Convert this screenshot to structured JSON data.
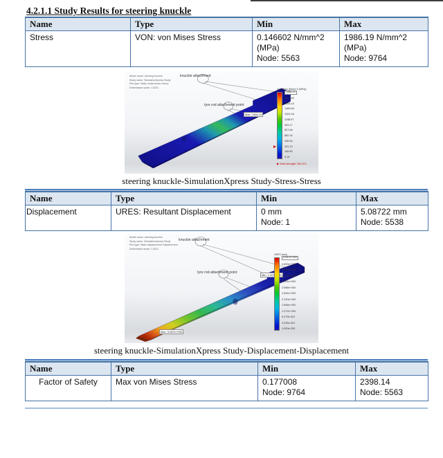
{
  "heading": "4.2.1.1 Study Results for steering knuckle",
  "colors": {
    "table_border_blue": "#4472a4",
    "table_header_fill": "#dce6f1",
    "divider_blue": "#4a7ebb",
    "yield_note_red": "#c40000"
  },
  "sections": [
    {
      "table": {
        "headers": [
          "Name",
          "Type",
          "Min",
          "Max"
        ],
        "row": [
          "Stress",
          "VON: von Mises Stress",
          "0.146602 N/mm^2 (MPa)\nNode: 5563",
          "1986.19 N/mm^2 (MPa)\nNode: 9764"
        ]
      },
      "figure": {
        "info_lines": [
          "Model name: steering knuckle",
          "Study name: SimulationXpress Study",
          "Plot type: Static nodal stress Stress",
          "Deformation scale: 1.5231"
        ],
        "annotation_knuckle": "knuckle attachment",
        "annotation_tyre_rod": "tyre rod attachment point",
        "max_label": "Max: 1986.19",
        "legend": {
          "title": "von Mises (N/mm^2 (MPa))",
          "labels": [
            "1986.19",
            "1820.69",
            "1655.18",
            "1489.68",
            "1324.18",
            "1158.67",
            "993.17",
            "827.66",
            "662.16",
            "496.66",
            "331.15",
            "165.65",
            "0.15"
          ],
          "yield_note": "Yield strength: 351.571"
        }
      },
      "caption": "steering knuckle-SimulationXpress Study-Stress-Stress"
    },
    {
      "table": {
        "headers": [
          "Name",
          "Type",
          "Min",
          "Max"
        ],
        "row": [
          "Displacement",
          "URES: Resultant Displacement",
          "0 mm\nNode: 1",
          "5.08722 mm\nNode: 5538"
        ]
      },
      "figure": {
        "info_lines": [
          "Model name: steering knuckle",
          "Study name: SimulationXpress Study",
          "Plot type: Static displacement Displacement",
          "Deformation scale: 1.5231"
        ],
        "annotation_knuckle": "knuckle attachment",
        "annotation_tyre_rod": "tyre rod attachment point",
        "min_label": "Min: 1.000e-030",
        "max_label": "Max: 5.087e+000",
        "legend": {
          "title": "URES (mm)",
          "labels": [
            "5.087e+000",
            "4.663e+000",
            "4.239e+000",
            "3.815e+000",
            "3.391e+000",
            "2.968e+000",
            "2.544e+000",
            "2.120e+000",
            "1.696e+000",
            "1.272e+000",
            "8.479e-001",
            "4.239e-001",
            "1.000e-030"
          ]
        }
      },
      "caption": "steering knuckle-SimulationXpress Study-Displacement-Displacement"
    },
    {
      "table": {
        "headers": [
          "Name",
          "Type",
          "Min",
          "Max"
        ],
        "row": [
          "Factor of Safety",
          "Max von Mises Stress",
          "0.177008\nNode: 9764",
          "2398.14\nNode: 5563"
        ]
      }
    }
  ]
}
